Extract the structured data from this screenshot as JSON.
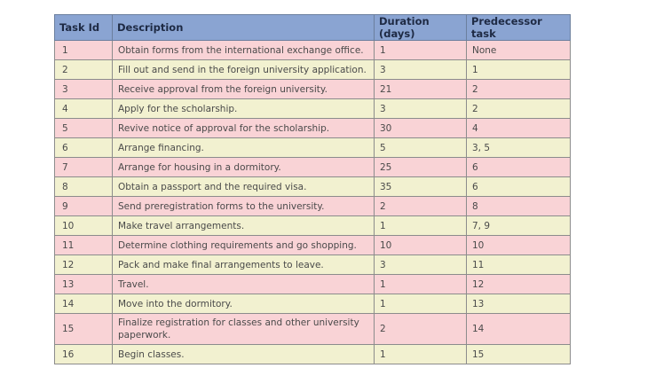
{
  "table": {
    "headers": [
      "Task Id",
      "Description",
      "Duration (days)",
      "Predecessor task"
    ],
    "rows": [
      {
        "id": "1",
        "desc": "Obtain forms from the international exchange office.",
        "dur": "1",
        "pred": "None"
      },
      {
        "id": "2",
        "desc": "Fill out and send in the foreign university application.",
        "dur": "3",
        "pred": "1"
      },
      {
        "id": "3",
        "desc": "Receive approval from the foreign university.",
        "dur": "21",
        "pred": "2"
      },
      {
        "id": "4",
        "desc": "Apply for the scholarship.",
        "dur": "3",
        "pred": "2"
      },
      {
        "id": "5",
        "desc": "Revive notice of approval for the scholarship.",
        "dur": "30",
        "pred": "4"
      },
      {
        "id": "6",
        "desc": "Arrange financing.",
        "dur": "5",
        "pred": "3, 5"
      },
      {
        "id": "7",
        "desc": "Arrange for housing in a dormitory.",
        "dur": "25",
        "pred": "6"
      },
      {
        "id": "8",
        "desc": "Obtain a passport and the required visa.",
        "dur": "35",
        "pred": "6"
      },
      {
        "id": "9",
        "desc": "Send preregistration forms to the university.",
        "dur": "2",
        "pred": "8"
      },
      {
        "id": "10",
        "desc": "Make travel arrangements.",
        "dur": "1",
        "pred": "7, 9"
      },
      {
        "id": "11",
        "desc": "Determine clothing requirements and go shopping.",
        "dur": "10",
        "pred": "10"
      },
      {
        "id": "12",
        "desc": "Pack and make final arrangements to leave.",
        "dur": "3",
        "pred": "11"
      },
      {
        "id": "13",
        "desc": "Travel.",
        "dur": "1",
        "pred": "12"
      },
      {
        "id": "14",
        "desc": "Move into the dormitory.",
        "dur": "1",
        "pred": "13"
      },
      {
        "id": "15",
        "desc": "Finalize registration for classes and other university paperwork.",
        "dur": "2",
        "pred": "14"
      },
      {
        "id": "16",
        "desc": "Begin classes.",
        "dur": "1",
        "pred": "15"
      }
    ]
  },
  "colors": {
    "header_bg": "#8aa4d2",
    "row_pink": "#f9d3d6",
    "row_cream": "#f2f1d0"
  }
}
